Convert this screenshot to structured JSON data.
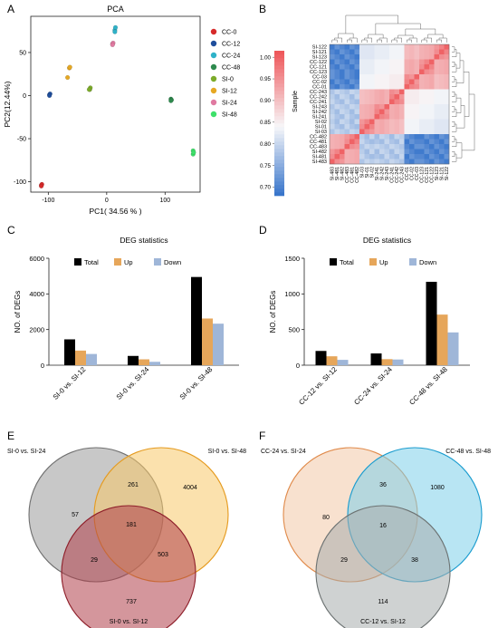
{
  "panel_letters": [
    "A",
    "B",
    "C",
    "D",
    "E",
    "F"
  ],
  "chart_data": [
    {
      "panel": "A",
      "type": "scatter",
      "title": "PCA",
      "xlabel": "PC1( 34.56 % )",
      "ylabel": "PC2(12.44%)",
      "xlim": [
        -130,
        160
      ],
      "ylim": [
        -112,
        92
      ],
      "xticks": [
        -100,
        0,
        100
      ],
      "yticks": [
        -100,
        -50,
        0,
        50
      ],
      "legend_position": "right",
      "series": [
        {
          "name": "CC-0",
          "color": "#d62a2a",
          "points": [
            [
              -112,
              -104
            ],
            [
              -111,
              -103
            ],
            [
              -112,
              -105
            ]
          ]
        },
        {
          "name": "CC-12",
          "color": "#1f4e9c",
          "points": [
            [
              -98,
              1
            ],
            [
              -97,
              2
            ],
            [
              -98,
              0
            ]
          ]
        },
        {
          "name": "CC-24",
          "color": "#2fb2c8",
          "points": [
            [
              14,
              76
            ],
            [
              15,
              79
            ],
            [
              14,
              74
            ]
          ]
        },
        {
          "name": "CC-48",
          "color": "#2e8a4e",
          "points": [
            [
              110,
              -4
            ],
            [
              111,
              -5
            ],
            [
              110,
              -6
            ]
          ]
        },
        {
          "name": "SI-0",
          "color": "#7cab2a",
          "points": [
            [
              -29,
              7
            ],
            [
              -28,
              9
            ],
            [
              -30,
              7
            ]
          ]
        },
        {
          "name": "SI-12",
          "color": "#e6a823",
          "points": [
            [
              -67,
              21
            ],
            [
              -64,
              32
            ],
            [
              -63,
              33
            ]
          ]
        },
        {
          "name": "SI-24",
          "color": "#e07aa1",
          "points": [
            [
              10,
              60
            ],
            [
              11,
              61
            ],
            [
              10,
              59
            ]
          ]
        },
        {
          "name": "SI-48",
          "color": "#3ee06a",
          "points": [
            [
              148,
              -64
            ],
            [
              148,
              -68
            ],
            [
              149,
              -66
            ]
          ]
        }
      ]
    },
    {
      "panel": "B",
      "type": "heatmap",
      "legend_title": "Sample",
      "colorbar_ticks": [
        0.7,
        0.75,
        0.8,
        0.85,
        0.9,
        0.95,
        1.0
      ],
      "colorbar_labels": [
        "0.70",
        "0.75",
        "0.80",
        "0.85",
        "0.90",
        "0.95",
        "1.00"
      ],
      "value_range": [
        0.66,
        1.02
      ],
      "row_labels": [
        "SI-122",
        "SI-121",
        "SI-123",
        "CC-122",
        "CC-121",
        "CC-123",
        "CC-03",
        "CC-02",
        "CC-01",
        "CC-243",
        "CC-242",
        "CC-241",
        "SI-243",
        "SI-242",
        "SI-241",
        "SI-02",
        "SI-01",
        "SI-03",
        "CC-482",
        "CC-481",
        "CC-483",
        "SI-482",
        "SI-481",
        "SI-483"
      ],
      "column_labels": [
        "SI-483",
        "SI-481",
        "SI-482",
        "CC-483",
        "CC-481",
        "CC-482",
        "SI-03",
        "SI-01",
        "SI-02",
        "SI-241",
        "SI-242",
        "SI-243",
        "CC-241",
        "CC-242",
        "CC-243",
        "CC-01",
        "CC-02",
        "CC-03",
        "CC-123",
        "CC-121",
        "CC-122",
        "SI-123",
        "SI-121",
        "SI-122"
      ],
      "groups": [
        "SI-12",
        "CC-12",
        "CC-0",
        "CC-24",
        "SI-24",
        "SI-0",
        "CC-48",
        "SI-48"
      ]
    },
    {
      "panel": "C",
      "type": "bar",
      "title": "DEG statistics",
      "ylabel": "NO. of DEGs",
      "ylim": [
        0,
        6000
      ],
      "yticks": [
        0,
        2000,
        4000,
        6000
      ],
      "categories": [
        "SI-0 vs. SI-12",
        "SI-0 vs. SI-24",
        "SI-0 vs. SI-48"
      ],
      "legend_position": "top",
      "series": [
        {
          "name": "Total",
          "color": "#000000",
          "values": [
            1450,
            520,
            4950
          ]
        },
        {
          "name": "Up",
          "color": "#e6a65a",
          "values": [
            820,
            330,
            2620
          ]
        },
        {
          "name": "Down",
          "color": "#9fb6d8",
          "values": [
            630,
            190,
            2330
          ]
        }
      ]
    },
    {
      "panel": "D",
      "type": "bar",
      "title": "DEG statistics",
      "ylabel": "NO. of DEGs",
      "ylim": [
        0,
        1500
      ],
      "yticks": [
        0,
        500,
        1000,
        1500
      ],
      "categories": [
        "CC-12 vs. SI-12",
        "CC-24 vs. SI-24",
        "CC-48 vs. SI-48"
      ],
      "legend_position": "top",
      "series": [
        {
          "name": "Total",
          "color": "#000000",
          "values": [
            200,
            165,
            1170
          ]
        },
        {
          "name": "Up",
          "color": "#e6a65a",
          "values": [
            125,
            85,
            710
          ]
        },
        {
          "name": "Down",
          "color": "#9fb6d8",
          "values": [
            75,
            80,
            460
          ]
        }
      ]
    },
    {
      "panel": "E",
      "type": "venn",
      "sets": [
        {
          "name": "SI-0 vs. SI-24",
          "fill": "#9a9a9a",
          "stroke": "#6f6f6f"
        },
        {
          "name": "SI-0 vs. SI-48",
          "fill": "#f7c96a",
          "stroke": "#e59a1e"
        },
        {
          "name": "SI-0 vs. SI-12",
          "fill": "#b0404a",
          "stroke": "#8e1f2a"
        }
      ],
      "regions": [
        {
          "sets": [
            "SI-0 vs. SI-24"
          ],
          "value": 57
        },
        {
          "sets": [
            "SI-0 vs. SI-24",
            "SI-0 vs. SI-48"
          ],
          "value": 261
        },
        {
          "sets": [
            "SI-0 vs. SI-48"
          ],
          "value": 4004
        },
        {
          "sets": [
            "SI-0 vs. SI-24",
            "SI-0 vs. SI-48",
            "SI-0 vs. SI-12"
          ],
          "value": 181
        },
        {
          "sets": [
            "SI-0 vs. SI-24",
            "SI-0 vs. SI-12"
          ],
          "value": 29
        },
        {
          "sets": [
            "SI-0 vs. SI-48",
            "SI-0 vs. SI-12"
          ],
          "value": 503
        },
        {
          "sets": [
            "SI-0 vs. SI-12"
          ],
          "value": 737
        }
      ]
    },
    {
      "panel": "F",
      "type": "venn",
      "sets": [
        {
          "name": "CC-24 vs. SI-24",
          "fill": "#f2c9a8",
          "stroke": "#e08a4a"
        },
        {
          "name": "CC-48 vs. SI-48",
          "fill": "#7ed0ea",
          "stroke": "#1a9ccf"
        },
        {
          "name": "CC-12 vs. SI-12",
          "fill": "#a8adad",
          "stroke": "#6c7272"
        }
      ],
      "regions": [
        {
          "sets": [
            "CC-24 vs. SI-24"
          ],
          "value": 80
        },
        {
          "sets": [
            "CC-24 vs. SI-24",
            "CC-48 vs. SI-48"
          ],
          "value": 36
        },
        {
          "sets": [
            "CC-48 vs. SI-48"
          ],
          "value": 1080
        },
        {
          "sets": [
            "CC-24 vs. SI-24",
            "CC-48 vs. SI-48",
            "CC-12 vs. SI-12"
          ],
          "value": 16
        },
        {
          "sets": [
            "CC-24 vs. SI-24",
            "CC-12 vs. SI-12"
          ],
          "value": 29
        },
        {
          "sets": [
            "CC-48 vs. SI-48",
            "CC-12 vs. SI-12"
          ],
          "value": 38
        },
        {
          "sets": [
            "CC-12 vs. SI-12"
          ],
          "value": 114
        }
      ]
    }
  ]
}
